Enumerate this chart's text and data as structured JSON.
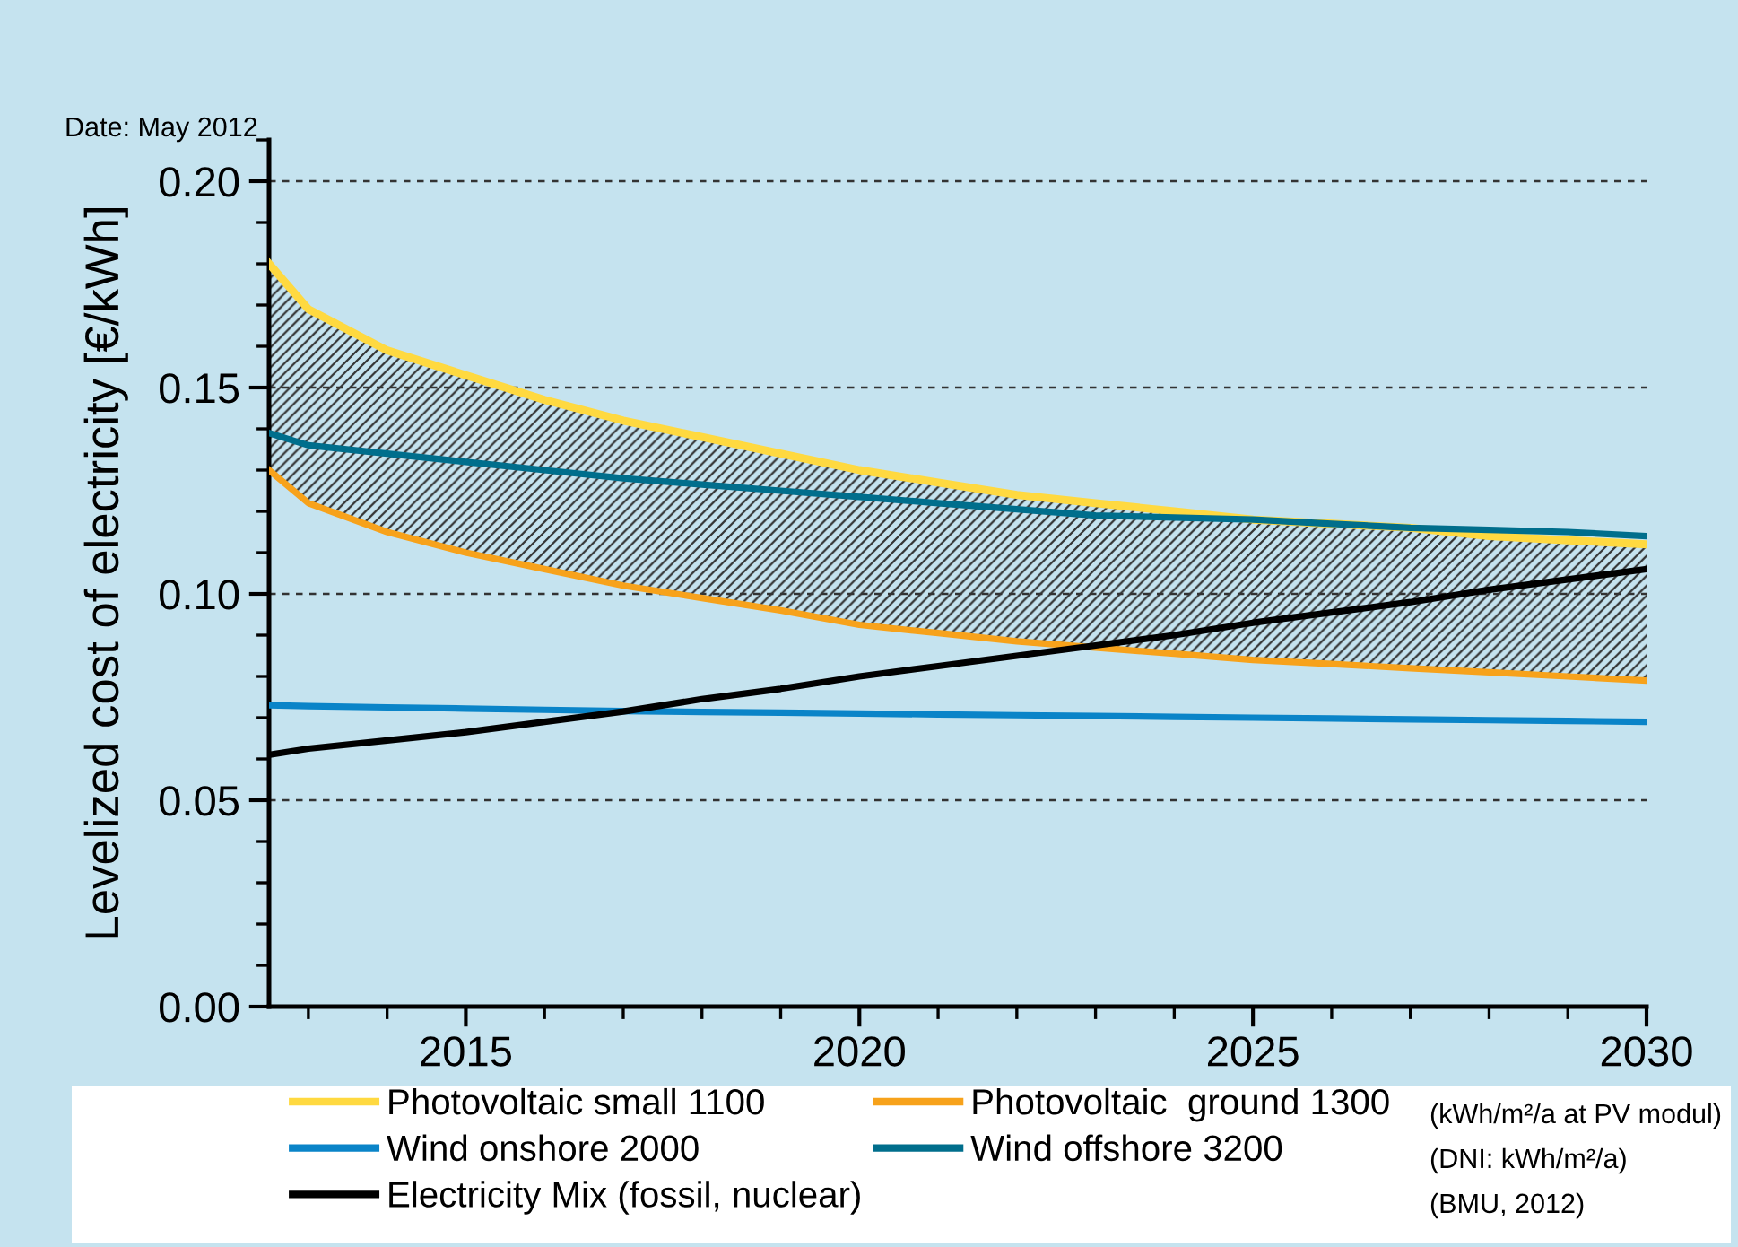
{
  "chart_data": {
    "type": "line",
    "ylabel": "Levelized cost of electricity [€/kWh]",
    "x": [
      2012.5,
      2013,
      2014,
      2015,
      2016,
      2017,
      2018,
      2019,
      2020,
      2021,
      2022,
      2023,
      2024,
      2025,
      2026,
      2027,
      2028,
      2029,
      2030
    ],
    "series": [
      {
        "name": "Photovoltaic small 1100",
        "color": "#ffd940",
        "values": [
          0.18,
          0.169,
          0.159,
          0.153,
          0.147,
          0.142,
          0.138,
          0.134,
          0.13,
          0.127,
          0.124,
          0.122,
          0.12,
          0.118,
          0.117,
          0.116,
          0.114,
          0.113,
          0.112
        ],
        "lower": [
          0.13,
          0.122,
          0.115,
          0.11,
          0.106,
          0.102,
          0.099,
          0.096,
          0.0925,
          0.0905,
          0.0885,
          0.087,
          0.0855,
          0.084,
          0.083,
          0.082,
          0.081,
          0.08,
          0.079
        ],
        "upper": [
          0.18,
          0.169,
          0.159,
          0.153,
          0.147,
          0.142,
          0.138,
          0.134,
          0.13,
          0.127,
          0.124,
          0.122,
          0.12,
          0.118,
          0.117,
          0.116,
          0.114,
          0.113,
          0.112
        ]
      },
      {
        "name": "Photovoltaic  ground 1300",
        "color": "#f7a21b",
        "values": [
          0.13,
          0.122,
          0.115,
          0.11,
          0.106,
          0.102,
          0.099,
          0.096,
          0.0925,
          0.0905,
          0.0885,
          0.087,
          0.0855,
          0.084,
          0.083,
          0.082,
          0.081,
          0.08,
          0.079
        ]
      },
      {
        "name": "Wind onshore 2000",
        "color": "#0a84c8",
        "values": [
          0.073,
          0.0728,
          0.0725,
          0.0722,
          0.0719,
          0.0716,
          0.0714,
          0.0712,
          0.071,
          0.0708,
          0.0706,
          0.0704,
          0.0702,
          0.07,
          0.0698,
          0.0696,
          0.0694,
          0.0692,
          0.069
        ]
      },
      {
        "name": "Wind offshore 3200",
        "color": "#006e8c",
        "values": [
          0.139,
          0.136,
          0.134,
          0.132,
          0.13,
          0.128,
          0.1265,
          0.125,
          0.1235,
          0.122,
          0.1205,
          0.119,
          0.1185,
          0.118,
          0.117,
          0.116,
          0.1155,
          0.115,
          0.114
        ]
      },
      {
        "name": "Electricity Mix (fossil, nuclear)",
        "color": "#000000",
        "values": [
          0.061,
          0.0625,
          0.0645,
          0.0665,
          0.069,
          0.0715,
          0.0745,
          0.077,
          0.08,
          0.0825,
          0.085,
          0.0875,
          0.09,
          0.093,
          0.0955,
          0.098,
          0.101,
          0.1035,
          0.106
        ]
      }
    ],
    "xlim": [
      2012.5,
      2030
    ],
    "xticks": [
      2015,
      2020,
      2025,
      2030
    ],
    "ylim": [
      0,
      0.21
    ],
    "yticks": [
      {
        "value": 0,
        "label": "0.00"
      },
      {
        "value": 0.05,
        "label": "0.05"
      },
      {
        "value": 0.1,
        "label": "0.10"
      },
      {
        "value": 0.15,
        "label": "0.15"
      },
      {
        "value": 0.2,
        "label": "0.20"
      }
    ],
    "grid": "y",
    "legend": "bottom",
    "line_style": "solid",
    "marker": "none",
    "annotations": [
      "Date: May 2012",
      "(kWh/m²/a at PV modul)",
      "(DNI: kWh/m²/a)",
      "(BMU, 2012)"
    ]
  }
}
